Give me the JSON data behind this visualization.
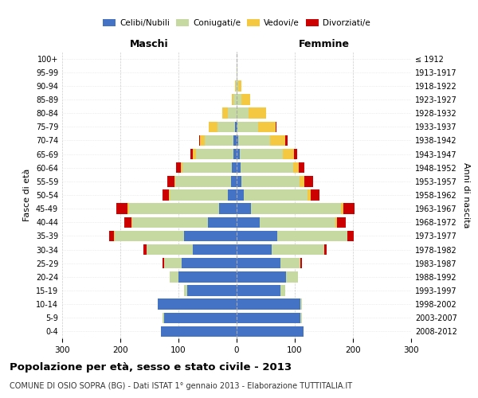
{
  "age_groups": [
    "0-4",
    "5-9",
    "10-14",
    "15-19",
    "20-24",
    "25-29",
    "30-34",
    "35-39",
    "40-44",
    "45-49",
    "50-54",
    "55-59",
    "60-64",
    "65-69",
    "70-74",
    "75-79",
    "80-84",
    "85-89",
    "90-94",
    "95-99",
    "100+"
  ],
  "birth_years": [
    "2008-2012",
    "2003-2007",
    "1998-2002",
    "1993-1997",
    "1988-1992",
    "1983-1987",
    "1978-1982",
    "1973-1977",
    "1968-1972",
    "1963-1967",
    "1958-1962",
    "1953-1957",
    "1948-1952",
    "1943-1947",
    "1938-1942",
    "1933-1937",
    "1928-1932",
    "1923-1927",
    "1918-1922",
    "1913-1917",
    "≤ 1912"
  ],
  "male_celibi": [
    130,
    125,
    135,
    85,
    100,
    95,
    75,
    90,
    50,
    30,
    15,
    10,
    8,
    5,
    5,
    3,
    0,
    0,
    0,
    0,
    0
  ],
  "male_coniugati": [
    0,
    2,
    0,
    5,
    15,
    30,
    80,
    120,
    130,
    155,
    100,
    95,
    85,
    65,
    50,
    30,
    15,
    5,
    2,
    0,
    0
  ],
  "male_vedovi": [
    0,
    0,
    0,
    0,
    0,
    0,
    0,
    1,
    1,
    2,
    1,
    2,
    3,
    5,
    8,
    15,
    10,
    3,
    1,
    0,
    0
  ],
  "male_divorziati": [
    0,
    0,
    0,
    0,
    0,
    2,
    5,
    8,
    12,
    20,
    12,
    12,
    8,
    5,
    2,
    0,
    0,
    0,
    0,
    0,
    0
  ],
  "female_celibi": [
    115,
    110,
    110,
    75,
    85,
    75,
    60,
    70,
    40,
    25,
    12,
    8,
    7,
    5,
    3,
    2,
    0,
    0,
    0,
    0,
    0
  ],
  "female_coniugati": [
    0,
    2,
    2,
    8,
    20,
    35,
    90,
    120,
    130,
    155,
    110,
    100,
    90,
    75,
    55,
    35,
    20,
    8,
    3,
    1,
    0
  ],
  "female_vedovi": [
    0,
    0,
    0,
    0,
    0,
    0,
    0,
    1,
    2,
    3,
    5,
    8,
    10,
    18,
    25,
    30,
    30,
    15,
    5,
    1,
    0
  ],
  "female_divorziati": [
    0,
    0,
    0,
    0,
    1,
    2,
    5,
    10,
    15,
    20,
    15,
    15,
    10,
    6,
    4,
    2,
    1,
    0,
    0,
    0,
    0
  ],
  "color_celibi": "#4472c4",
  "color_coniugati": "#c5d9a0",
  "color_vedovi": "#f5c842",
  "color_divorziati": "#cc0000",
  "xlim": 300,
  "title": "Popolazione per età, sesso e stato civile - 2013",
  "subtitle": "COMUNE DI OSIO SOPRA (BG) - Dati ISTAT 1° gennaio 2013 - Elaborazione TUTTITALIA.IT",
  "ylabel_left": "Fasce di età",
  "ylabel_right": "Anni di nascita"
}
